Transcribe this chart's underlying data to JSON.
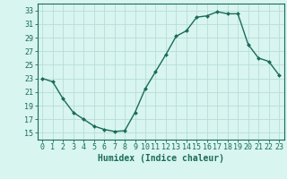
{
  "x": [
    0,
    1,
    2,
    3,
    4,
    5,
    6,
    7,
    8,
    9,
    10,
    11,
    12,
    13,
    14,
    15,
    16,
    17,
    18,
    19,
    20,
    21,
    22,
    23
  ],
  "y": [
    23,
    22.5,
    20,
    18,
    17,
    16,
    15.5,
    15.2,
    15.3,
    18,
    21.5,
    24,
    26.5,
    29.2,
    30,
    32,
    32.2,
    32.8,
    32.5,
    32.5,
    28,
    26,
    25.5,
    23.5
  ],
  "line_color": "#1a6b5a",
  "marker": "D",
  "marker_size": 2,
  "bg_color": "#d8f5f0",
  "grid_color": "#b8ddd8",
  "xlabel": "Humidex (Indice chaleur)",
  "xlim": [
    -0.5,
    23.5
  ],
  "ylim": [
    14,
    34
  ],
  "yticks": [
    15,
    17,
    19,
    21,
    23,
    25,
    27,
    29,
    31,
    33
  ],
  "xticks": [
    0,
    1,
    2,
    3,
    4,
    5,
    6,
    7,
    8,
    9,
    10,
    11,
    12,
    13,
    14,
    15,
    16,
    17,
    18,
    19,
    20,
    21,
    22,
    23
  ],
  "tick_color": "#1a6b5a",
  "axis_color": "#1a6b5a",
  "xlabel_fontsize": 7,
  "tick_fontsize": 6,
  "line_width": 1.0
}
